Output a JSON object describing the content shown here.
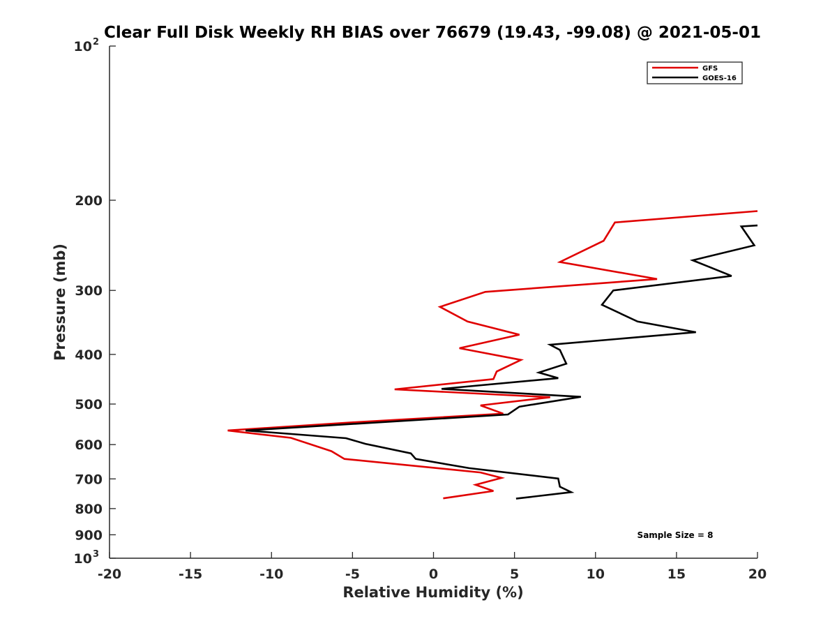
{
  "chart_data": {
    "type": "line",
    "title": "Clear Full Disk Weekly RH BIAS over 76679 (19.43, -99.08) @ 2021-05-01",
    "xlabel": "Relative Humidity (%)",
    "ylabel": "Pressure (mb)",
    "xlim": [
      -20,
      20
    ],
    "ylim": [
      100,
      1000
    ],
    "y_scale": "log",
    "y_reversed": true,
    "grid": false,
    "legend_placement": "top-right",
    "x_ticks": [
      -20,
      -15,
      -10,
      -5,
      0,
      5,
      10,
      15,
      20
    ],
    "x_tick_labels": [
      "-20",
      "-15",
      "-10",
      "-5",
      "0",
      "5",
      "10",
      "15",
      "20"
    ],
    "y_ticks": [
      {
        "value": 100,
        "base": "10",
        "exp": "2"
      },
      {
        "value": 200,
        "label": "200"
      },
      {
        "value": 300,
        "label": "300"
      },
      {
        "value": 400,
        "label": "400"
      },
      {
        "value": 500,
        "label": "500"
      },
      {
        "value": 600,
        "label": "600"
      },
      {
        "value": 700,
        "label": "700"
      },
      {
        "value": 800,
        "label": "800"
      },
      {
        "value": 900,
        "label": "900"
      },
      {
        "value": 1000,
        "base": "10",
        "exp": "3"
      }
    ],
    "series": [
      {
        "name": "GFS",
        "color": "#e00000",
        "points": [
          {
            "x": 20,
            "y": 210
          },
          {
            "x": 11.2,
            "y": 221
          },
          {
            "x": 10.5,
            "y": 240
          },
          {
            "x": 7.8,
            "y": 264
          },
          {
            "x": 13.8,
            "y": 285
          },
          {
            "x": 3.2,
            "y": 302
          },
          {
            "x": 0.4,
            "y": 323
          },
          {
            "x": 2.1,
            "y": 345
          },
          {
            "x": 5.3,
            "y": 366
          },
          {
            "x": 1.6,
            "y": 389
          },
          {
            "x": 5.4,
            "y": 410
          },
          {
            "x": 3.9,
            "y": 432
          },
          {
            "x": 3.7,
            "y": 447
          },
          {
            "x": -2.4,
            "y": 468
          },
          {
            "x": 7.2,
            "y": 485
          },
          {
            "x": 2.9,
            "y": 503
          },
          {
            "x": 4.3,
            "y": 522
          },
          {
            "x": -5.0,
            "y": 543
          },
          {
            "x": -12.7,
            "y": 563
          },
          {
            "x": -8.8,
            "y": 582
          },
          {
            "x": -6.3,
            "y": 618
          },
          {
            "x": -5.5,
            "y": 640
          },
          {
            "x": 2.9,
            "y": 680
          },
          {
            "x": 4.2,
            "y": 697
          },
          {
            "x": 2.6,
            "y": 719
          },
          {
            "x": 3.7,
            "y": 739
          },
          {
            "x": 0.6,
            "y": 764
          }
        ]
      },
      {
        "name": "GOES-16",
        "color": "#000000",
        "points": [
          {
            "x": 20,
            "y": 224
          },
          {
            "x": 19.0,
            "y": 225
          },
          {
            "x": 19.8,
            "y": 245
          },
          {
            "x": 16.0,
            "y": 262
          },
          {
            "x": 18.4,
            "y": 281
          },
          {
            "x": 11.1,
            "y": 300
          },
          {
            "x": 10.4,
            "y": 320
          },
          {
            "x": 12.6,
            "y": 345
          },
          {
            "x": 16.2,
            "y": 362
          },
          {
            "x": 7.2,
            "y": 383
          },
          {
            "x": 7.8,
            "y": 392
          },
          {
            "x": 8.2,
            "y": 417
          },
          {
            "x": 6.5,
            "y": 434
          },
          {
            "x": 7.7,
            "y": 445
          },
          {
            "x": 0.5,
            "y": 467
          },
          {
            "x": 9.1,
            "y": 484
          },
          {
            "x": 5.3,
            "y": 506
          },
          {
            "x": 4.6,
            "y": 524
          },
          {
            "x": -11.6,
            "y": 563
          },
          {
            "x": -5.4,
            "y": 583
          },
          {
            "x": -4.2,
            "y": 598
          },
          {
            "x": -1.4,
            "y": 624
          },
          {
            "x": -1.1,
            "y": 640
          },
          {
            "x": 2.2,
            "y": 667
          },
          {
            "x": 7.7,
            "y": 699
          },
          {
            "x": 7.8,
            "y": 725
          },
          {
            "x": 8.5,
            "y": 743
          },
          {
            "x": 5.1,
            "y": 765
          }
        ]
      }
    ],
    "annotation": "Sample Size = 8"
  }
}
